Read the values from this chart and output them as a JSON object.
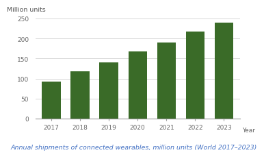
{
  "years": [
    "2017",
    "2018",
    "2019",
    "2020",
    "2021",
    "2022",
    "2023"
  ],
  "values": [
    93,
    118,
    141,
    167,
    190,
    217,
    240
  ],
  "bar_color": "#3a6b28",
  "background_color": "#ffffff",
  "ylabel": "Million units",
  "xlabel": "Year",
  "ylim": [
    0,
    260
  ],
  "yticks": [
    0,
    50,
    100,
    150,
    200,
    250
  ],
  "caption": "Annual shipments of connected wearables, million units (World 2017–2023)",
  "caption_fontsize": 6.8,
  "axis_label_fontsize": 6.5,
  "tick_fontsize": 6.5,
  "ylabel_fontsize": 6.8,
  "grid_color": "#d0d0d0",
  "bar_width": 0.65
}
